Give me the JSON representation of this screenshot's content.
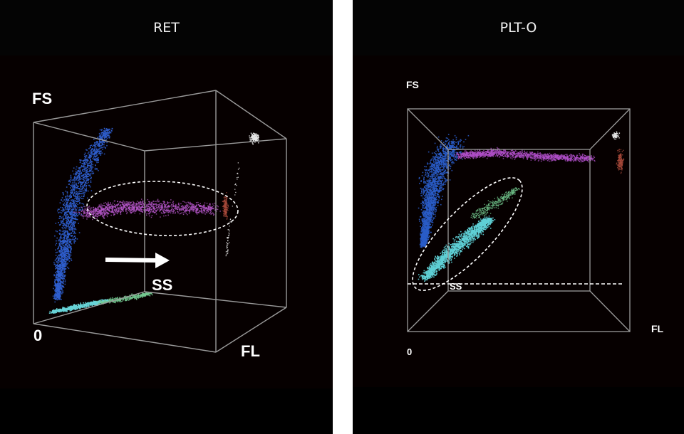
{
  "panels": [
    {
      "id": "ret",
      "title": "RET"
    },
    {
      "id": "plt",
      "title": "PLT-O"
    }
  ],
  "chart_data": [
    {
      "type": "scatter",
      "title": "RET",
      "axes": {
        "vertical": "FS",
        "depth": "SS",
        "horizontal": "FL",
        "origin": "0"
      },
      "clusters": [
        {
          "name": "blue",
          "color": "#2f5fd0"
        },
        {
          "name": "magenta",
          "color": "#b456c8"
        },
        {
          "name": "red",
          "color": "#a8483a"
        },
        {
          "name": "white",
          "color": "#e6e6e6"
        },
        {
          "name": "cyan",
          "color": "#68d4d8"
        },
        {
          "name": "green",
          "color": "#74c890"
        }
      ],
      "annotations": {
        "gate": "dashed ellipse around magenta cluster",
        "arrow": "white arrow pointing right"
      },
      "grid": false
    },
    {
      "type": "scatter",
      "title": "PLT-O",
      "axes": {
        "vertical": "FS",
        "depth": "SS",
        "horizontal": "FL",
        "origin": "0"
      },
      "clusters": [
        {
          "name": "blue",
          "color": "#2a5cc8"
        },
        {
          "name": "magenta",
          "color": "#b04fc8"
        },
        {
          "name": "red",
          "color": "#a8483a"
        },
        {
          "name": "white",
          "color": "#e6e6e6"
        },
        {
          "name": "cyan",
          "color": "#5fd0d6"
        },
        {
          "name": "green",
          "color": "#6fc28a"
        }
      ],
      "annotations": {
        "gate": "dashed ellipse around cyan cluster",
        "threshold": "dashed horizontal line"
      },
      "grid": false
    }
  ]
}
